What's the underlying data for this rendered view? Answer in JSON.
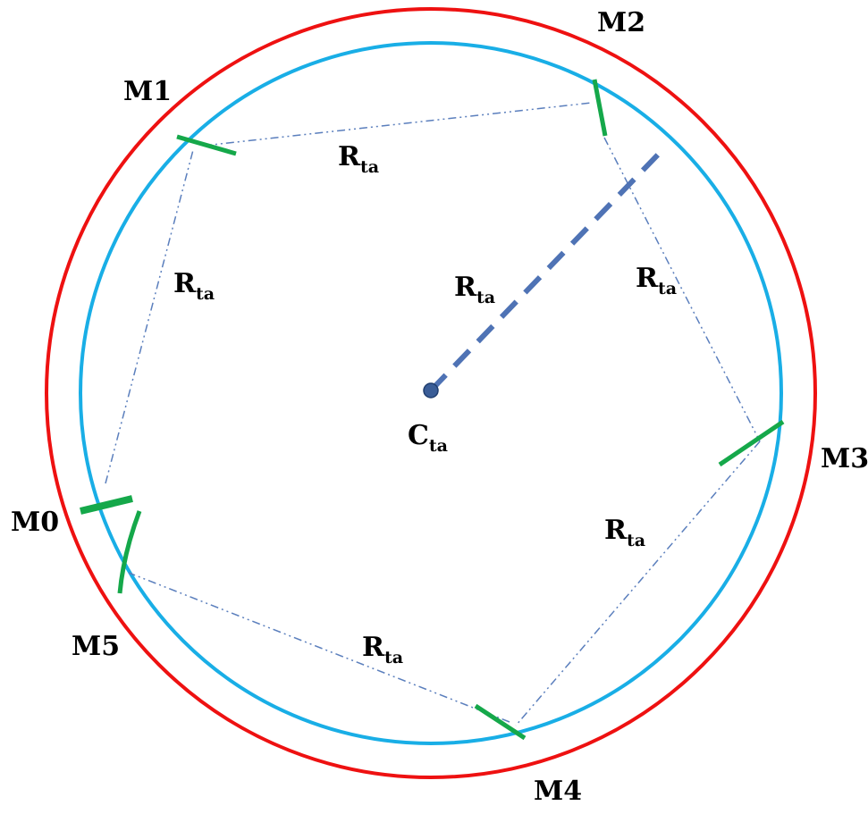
{
  "diagram": {
    "center_label": "C",
    "center_label_sub": "ta",
    "radius_label": "R",
    "radius_label_sub": "ta",
    "colors": {
      "outer_circle": "#ee1111",
      "inner_circle": "#19aee6",
      "marker": "#15a84a",
      "radius_line": "#4f73b5",
      "center_dot": "#3a5d97",
      "polygon_line": "#5b7fbd"
    },
    "points": [
      {
        "id": "m0",
        "label": "M0"
      },
      {
        "id": "m1",
        "label": "M1"
      },
      {
        "id": "m2",
        "label": "M2"
      },
      {
        "id": "m3",
        "label": "M3"
      },
      {
        "id": "m4",
        "label": "M4"
      },
      {
        "id": "m5",
        "label": "M5"
      }
    ],
    "segments": [
      {
        "id": "m1-m2",
        "label": "R",
        "sub": "ta"
      },
      {
        "id": "m2-m3",
        "label": "R",
        "sub": "ta"
      },
      {
        "id": "m3-m4",
        "label": "R",
        "sub": "ta"
      },
      {
        "id": "m4-m5",
        "label": "R",
        "sub": "ta"
      },
      {
        "id": "m0-m1",
        "label": "R",
        "sub": "ta"
      }
    ]
  }
}
